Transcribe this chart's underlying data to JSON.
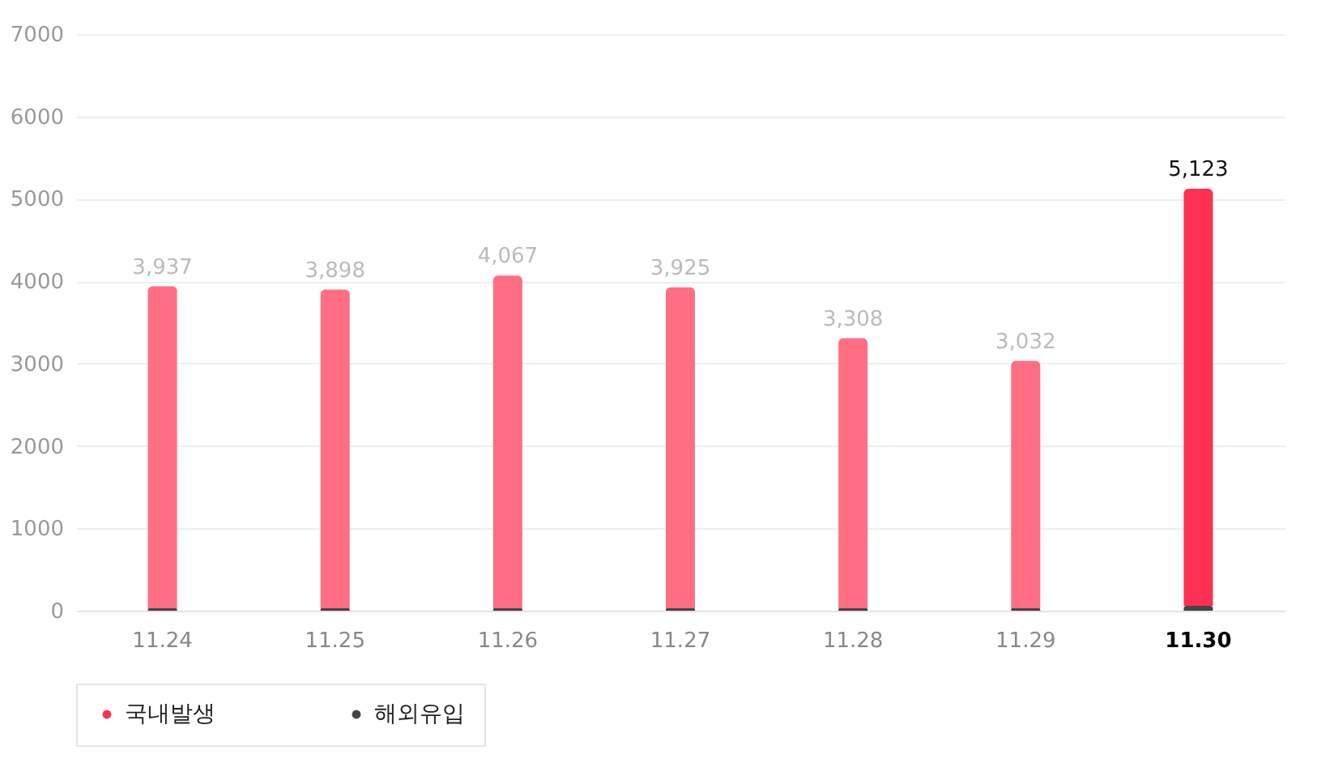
{
  "chart_data": {
    "type": "bar",
    "stacked": true,
    "categories": [
      "11.24",
      "11.25",
      "11.26",
      "11.27",
      "11.28",
      "11.29",
      "11.30"
    ],
    "series": [
      {
        "name": "해외유입",
        "color": "#444444",
        "values": [
          30,
          30,
          30,
          30,
          30,
          30,
          60
        ]
      },
      {
        "name": "국내발생",
        "color": "#ff3152",
        "colors": [
          "#ff6e83",
          "#ff6e83",
          "#ff6e83",
          "#ff6e83",
          "#ff6e83",
          "#ff6e83",
          "#ff3152"
        ],
        "values": [
          3907,
          3868,
          4037,
          3895,
          3278,
          3002,
          5063
        ]
      }
    ],
    "totals": [
      "3,937",
      "3,898",
      "4,067",
      "3,925",
      "3,308",
      "3,032",
      "5,123"
    ],
    "ylim": [
      0,
      7000
    ],
    "yticks": [
      0,
      1000,
      2000,
      3000,
      4000,
      5000,
      6000,
      7000
    ],
    "grid": "y",
    "legend": "bottom"
  }
}
